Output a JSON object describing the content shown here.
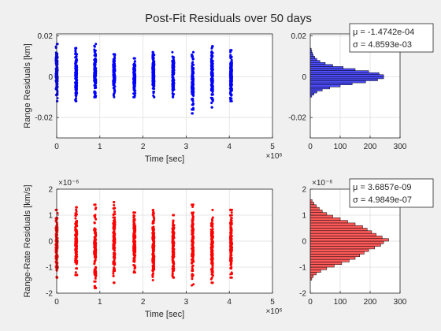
{
  "figure": {
    "title": "Post-Fit Residuals over 50 days",
    "background": "#f0f0f0"
  },
  "chart_data": [
    {
      "id": "range-scatter",
      "type": "scatter",
      "xlabel": "Time [sec]",
      "ylabel": "Range Residuals [km]",
      "xlim": [
        0,
        5000000
      ],
      "ylim": [
        -0.03,
        0.021
      ],
      "x_ticks": [
        0,
        1,
        2,
        3,
        4,
        5
      ],
      "x_exponent": "×10⁶",
      "y_ticks": [
        -0.02,
        0,
        0.02
      ],
      "y_tick_labels": [
        "-0.02",
        "0",
        "0.02"
      ],
      "grid": true,
      "color": "#0000ff",
      "passes": [
        {
          "t": 0,
          "min": -0.012,
          "max": 0.016
        },
        {
          "t": 450000,
          "min": -0.012,
          "max": 0.014
        },
        {
          "t": 890000,
          "min": -0.01,
          "max": 0.016
        },
        {
          "t": 1330000,
          "min": -0.01,
          "max": 0.011
        },
        {
          "t": 1800000,
          "min": -0.01,
          "max": 0.009
        },
        {
          "t": 2240000,
          "min": -0.01,
          "max": 0.012
        },
        {
          "t": 2700000,
          "min": -0.01,
          "max": 0.012
        },
        {
          "t": 3150000,
          "min": -0.018,
          "max": 0.012
        },
        {
          "t": 3600000,
          "min": -0.015,
          "max": 0.015
        },
        {
          "t": 4040000,
          "min": -0.012,
          "max": 0.013
        }
      ]
    },
    {
      "id": "range-hist",
      "type": "bar",
      "orientation": "horizontal",
      "xlim": [
        0,
        300
      ],
      "ylim": [
        -0.03,
        0.021
      ],
      "x_ticks": [
        0,
        100,
        200,
        300
      ],
      "y_ticks": [
        -0.02,
        0,
        0.02
      ],
      "y_tick_labels": [
        "-0.02",
        "0",
        "0.02"
      ],
      "grid": true,
      "color": "#4d4dff",
      "bins": [
        {
          "center": -0.0095,
          "count": 5
        },
        {
          "center": -0.0085,
          "count": 12
        },
        {
          "center": -0.0075,
          "count": 22
        },
        {
          "center": -0.0065,
          "count": 40
        },
        {
          "center": -0.0055,
          "count": 65
        },
        {
          "center": -0.0045,
          "count": 100
        },
        {
          "center": -0.0035,
          "count": 140
        },
        {
          "center": -0.0025,
          "count": 185
        },
        {
          "center": -0.0015,
          "count": 225
        },
        {
          "center": -0.0005,
          "count": 245
        },
        {
          "center": 0.0005,
          "count": 245
        },
        {
          "center": 0.0015,
          "count": 230
        },
        {
          "center": 0.0025,
          "count": 195
        },
        {
          "center": 0.0035,
          "count": 150
        },
        {
          "center": 0.0045,
          "count": 110
        },
        {
          "center": 0.0055,
          "count": 75
        },
        {
          "center": 0.0065,
          "count": 50
        },
        {
          "center": 0.0075,
          "count": 32
        },
        {
          "center": 0.0085,
          "count": 22
        },
        {
          "center": 0.0095,
          "count": 15
        },
        {
          "center": 0.0105,
          "count": 10
        },
        {
          "center": 0.0115,
          "count": 7
        },
        {
          "center": 0.0125,
          "count": 5
        },
        {
          "center": 0.0135,
          "count": 3
        }
      ],
      "legend": [
        "μ = -1.4742e-04",
        "σ = 4.8593e-03"
      ]
    },
    {
      "id": "rate-scatter",
      "type": "scatter",
      "xlabel": "Time [sec]",
      "ylabel": "Range-Rate Residuals [km/s]",
      "xlim": [
        0,
        5000000
      ],
      "ylim": [
        -2e-06,
        2e-06
      ],
      "x_ticks": [
        0,
        1,
        2,
        3,
        4,
        5
      ],
      "x_exponent": "×10⁶",
      "y_ticks": [
        -2,
        -1,
        0,
        1,
        2
      ],
      "y_exponent": "×10⁻⁶",
      "grid": true,
      "color": "#ff0000",
      "passes": [
        {
          "t": 0,
          "min": -1.4e-06,
          "max": 1.2e-06
        },
        {
          "t": 450000,
          "min": -1.3e-06,
          "max": 1.3e-06
        },
        {
          "t": 890000,
          "min": -1.8e-06,
          "max": 1.4e-06
        },
        {
          "t": 1330000,
          "min": -1.6e-06,
          "max": 1.5e-06
        },
        {
          "t": 1800000,
          "min": -1.2e-06,
          "max": 1.1e-06
        },
        {
          "t": 2240000,
          "min": -1.5e-06,
          "max": 1.2e-06
        },
        {
          "t": 2700000,
          "min": -1.4e-06,
          "max": 1e-06
        },
        {
          "t": 3150000,
          "min": -1.7e-06,
          "max": 1.4e-06
        },
        {
          "t": 3600000,
          "min": -1.6e-06,
          "max": 1.2e-06
        },
        {
          "t": 4040000,
          "min": -1.4e-06,
          "max": 1.2e-06
        }
      ]
    },
    {
      "id": "rate-hist",
      "type": "bar",
      "orientation": "horizontal",
      "xlim": [
        0,
        300
      ],
      "ylim": [
        -2e-06,
        2e-06
      ],
      "x_ticks": [
        0,
        100,
        200,
        300
      ],
      "y_ticks": [
        -2,
        -1,
        0,
        1,
        2
      ],
      "y_exponent": "×10⁻⁶",
      "grid": true,
      "color": "#ff5a5a",
      "bins": [
        {
          "center": -1.45e-06,
          "count": 5
        },
        {
          "center": -1.35e-06,
          "count": 10
        },
        {
          "center": -1.25e-06,
          "count": 20
        },
        {
          "center": -1.15e-06,
          "count": 35
        },
        {
          "center": -1.05e-06,
          "count": 55
        },
        {
          "center": -9.5e-07,
          "count": 80
        },
        {
          "center": -8.5e-07,
          "count": 105
        },
        {
          "center": -7.5e-07,
          "count": 130
        },
        {
          "center": -6.5e-07,
          "count": 150
        },
        {
          "center": -5.5e-07,
          "count": 165
        },
        {
          "center": -4.5e-07,
          "count": 180
        },
        {
          "center": -3.5e-07,
          "count": 195
        },
        {
          "center": -2.5e-07,
          "count": 215
        },
        {
          "center": -1.5e-07,
          "count": 235
        },
        {
          "center": -5e-08,
          "count": 245
        },
        {
          "center": 5e-08,
          "count": 262
        },
        {
          "center": 1.5e-07,
          "count": 240
        },
        {
          "center": 2.5e-07,
          "count": 220
        },
        {
          "center": 3.5e-07,
          "count": 205
        },
        {
          "center": 4.5e-07,
          "count": 190
        },
        {
          "center": 5.5e-07,
          "count": 175
        },
        {
          "center": 6.5e-07,
          "count": 150
        },
        {
          "center": 7.5e-07,
          "count": 125
        },
        {
          "center": 8.5e-07,
          "count": 100
        },
        {
          "center": 9.5e-07,
          "count": 75
        },
        {
          "center": 1.05e-06,
          "count": 55
        },
        {
          "center": 1.15e-06,
          "count": 40
        },
        {
          "center": 1.25e-06,
          "count": 30
        },
        {
          "center": 1.35e-06,
          "count": 20
        },
        {
          "center": 1.45e-06,
          "count": 12
        },
        {
          "center": 1.55e-06,
          "count": 6
        }
      ],
      "legend": [
        "μ = 3.6857e-09",
        "σ = 4.9849e-07"
      ]
    }
  ]
}
